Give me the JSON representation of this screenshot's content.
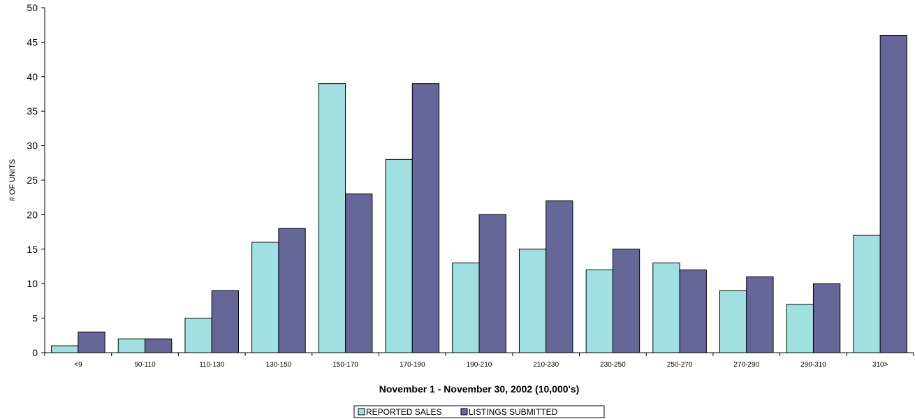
{
  "chart_data": {
    "type": "bar",
    "title": "",
    "xlabel": "November 1 - November 30, 2002 (10,000's)",
    "ylabel": "# OF UNITS",
    "ylim": [
      0,
      50
    ],
    "yticks": [
      0,
      5,
      10,
      15,
      20,
      25,
      30,
      35,
      40,
      45,
      50
    ],
    "grid": false,
    "legend_position": "bottom",
    "categories": [
      "<9",
      "90-110",
      "110-130",
      "130-150",
      "150-170",
      "170-190",
      "190-210",
      "210-230",
      "230-250",
      "250-270",
      "270-290",
      "290-310",
      "310>"
    ],
    "series": [
      {
        "name": "REPORTED SALES",
        "color": "#a0e0e0",
        "values": [
          1,
          2,
          5,
          16,
          39,
          28,
          13,
          15,
          12,
          13,
          9,
          7,
          17
        ]
      },
      {
        "name": "LISTINGS SUBMITTED",
        "color": "#666699",
        "values": [
          3,
          2,
          9,
          18,
          23,
          39,
          20,
          22,
          15,
          12,
          11,
          10,
          46
        ]
      }
    ]
  }
}
